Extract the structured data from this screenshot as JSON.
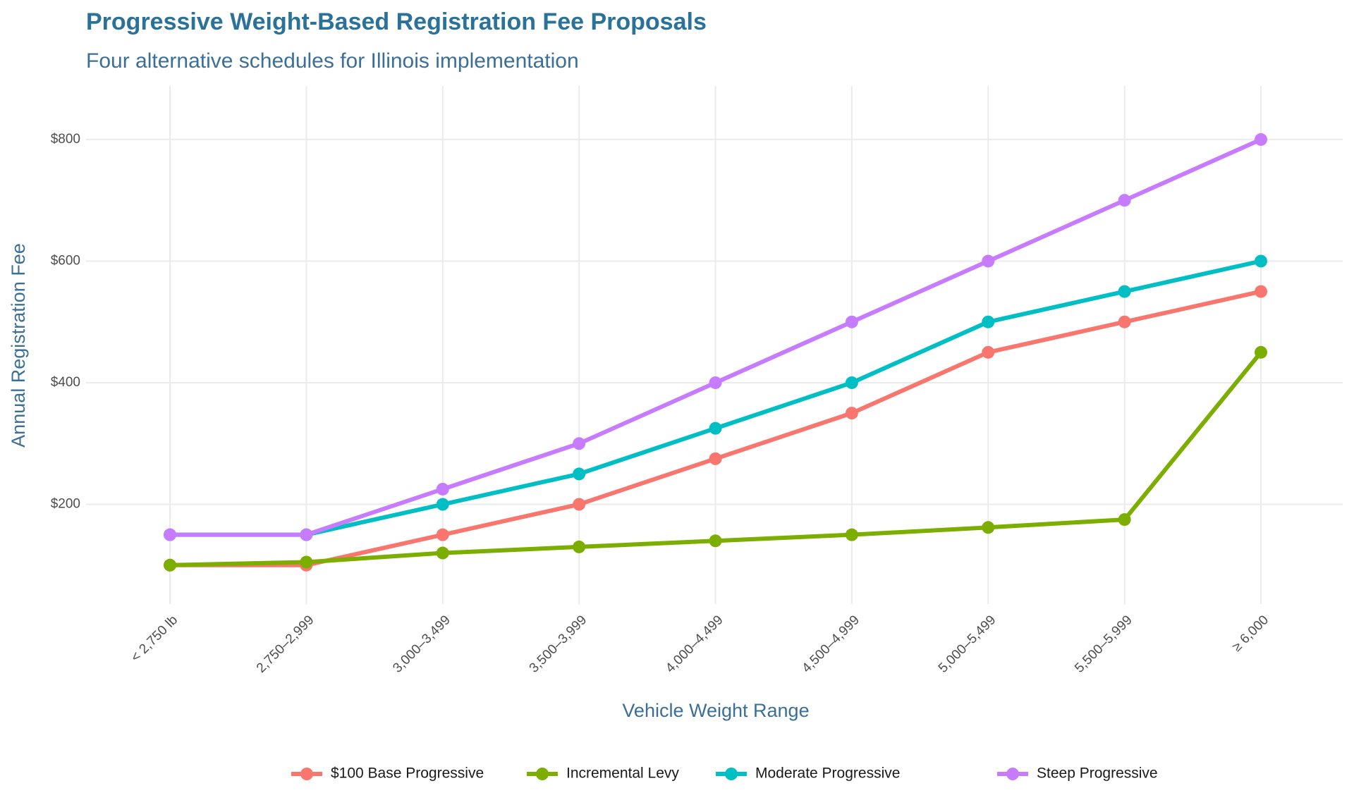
{
  "chart_data": {
    "type": "line",
    "title": "Progressive Weight-Based Registration Fee Proposals",
    "subtitle": "Four alternative schedules for Illinois implementation",
    "x_label": "Vehicle Weight Range",
    "y_label": "Annual Registration Fee",
    "categories": [
      "< 2,750 lb",
      "2,750–2,999",
      "3,000–3,499",
      "3,500–3,999",
      "4,000–4,499",
      "4,500–4,999",
      "5,000–5,499",
      "5,500–5,999",
      "≥ 6,000"
    ],
    "series": [
      {
        "name": "$100 Base Progressive",
        "color": "#F8766D",
        "values": [
          100,
          100,
          150,
          200,
          275,
          350,
          450,
          500,
          550
        ]
      },
      {
        "name": "Incremental Levy",
        "color": "#7CAE00",
        "values": [
          100,
          105,
          120,
          130,
          140,
          150,
          162,
          175,
          450
        ]
      },
      {
        "name": "Moderate Progressive",
        "color": "#00BFC4",
        "values": [
          150,
          150,
          200,
          250,
          325,
          400,
          500,
          550,
          600
        ]
      },
      {
        "name": "Steep Progressive",
        "color": "#C77CFF",
        "values": [
          150,
          150,
          225,
          300,
          400,
          500,
          600,
          700,
          800
        ]
      }
    ],
    "ylim": [
      36,
      888
    ],
    "yticks": [
      {
        "value": 200,
        "label": "$200"
      },
      {
        "value": 400,
        "label": "$400"
      },
      {
        "value": 600,
        "label": "$600"
      },
      {
        "value": 800,
        "label": "$800"
      }
    ],
    "grid": true,
    "legend": "bottom"
  }
}
